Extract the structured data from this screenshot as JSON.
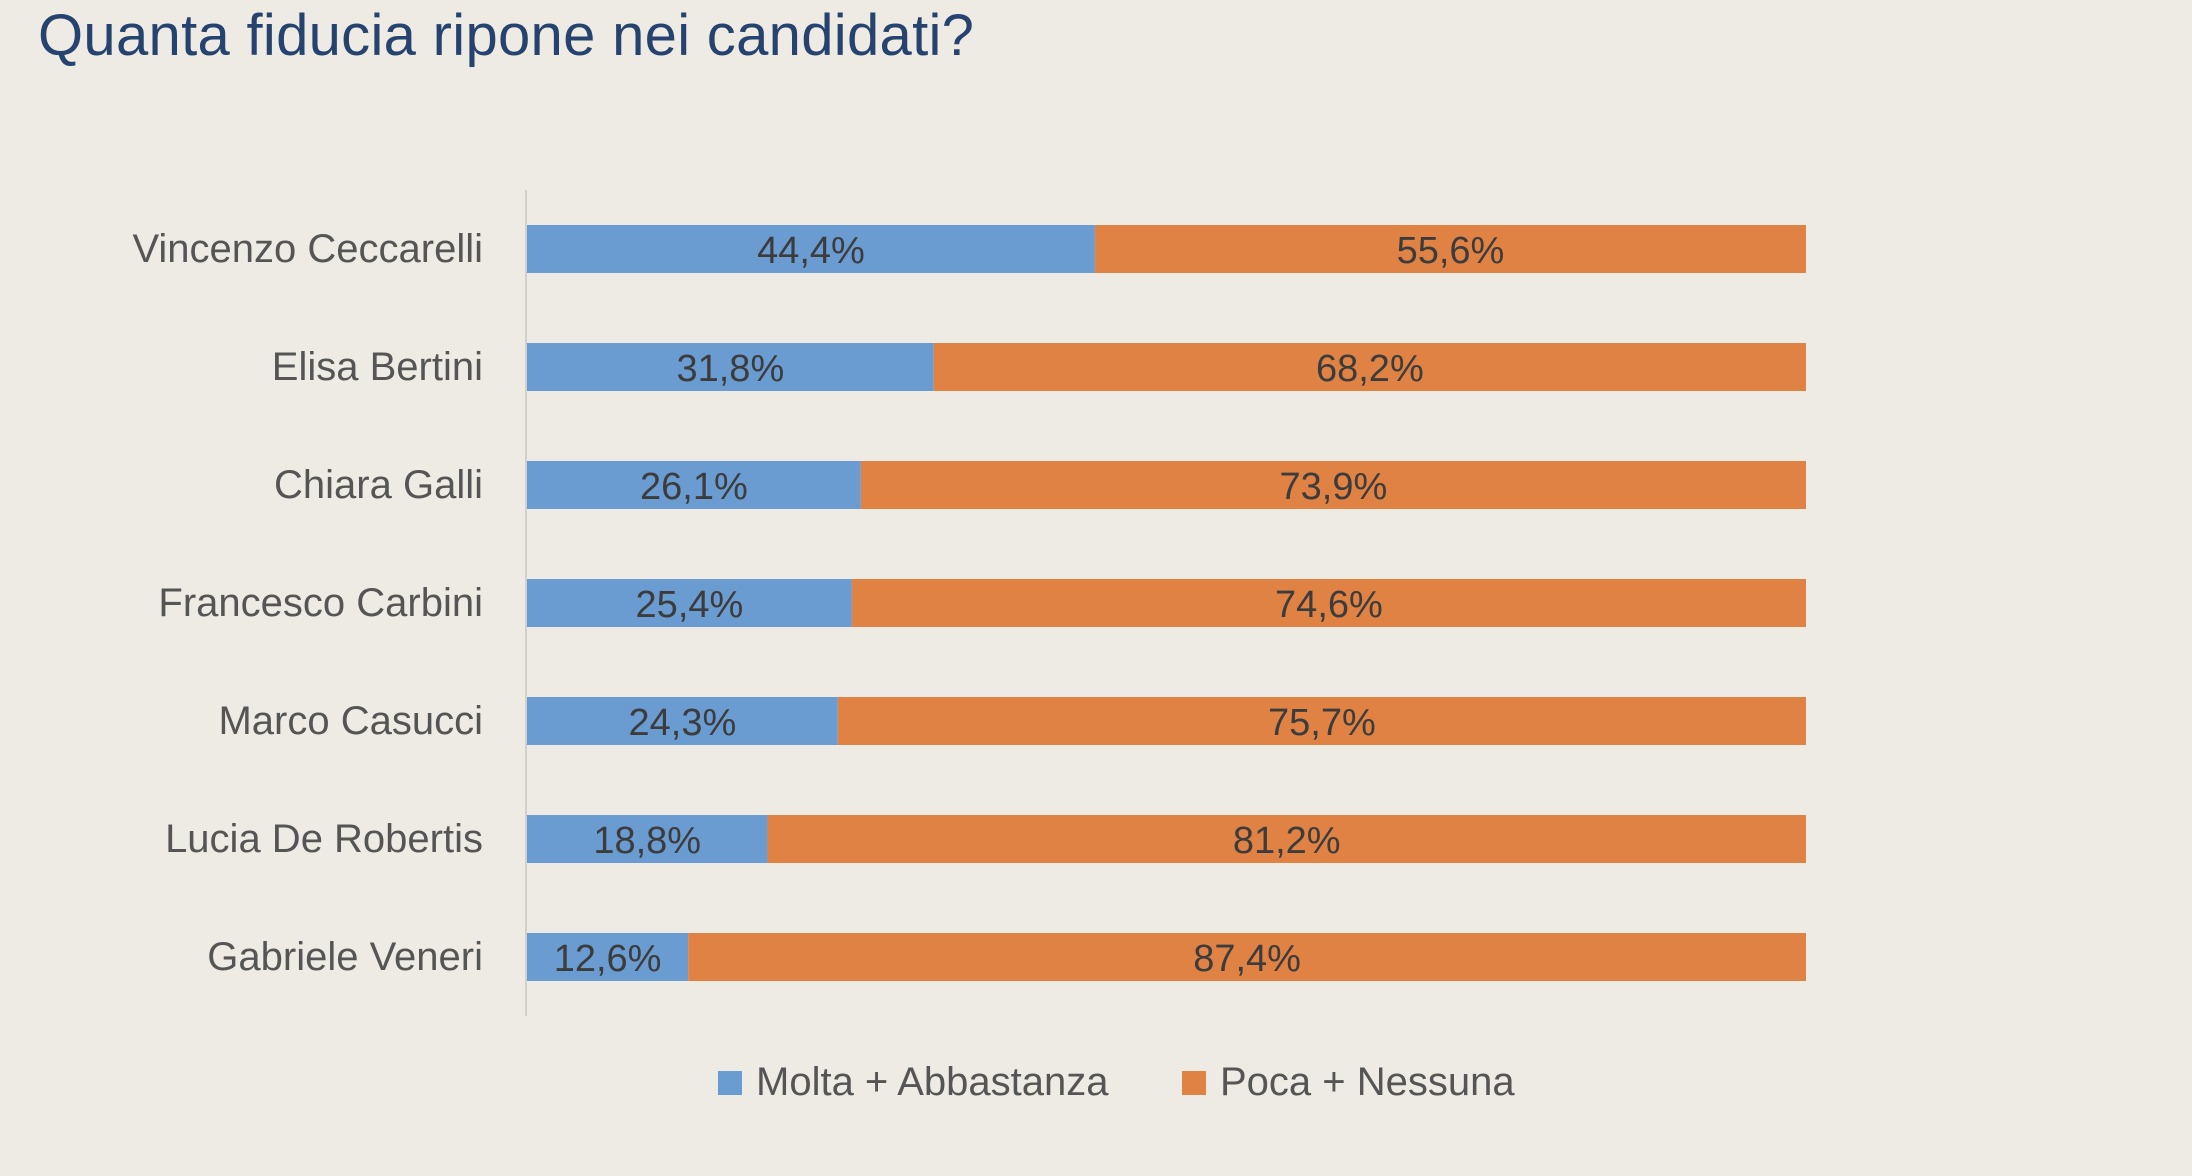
{
  "title": "Quanta fiducia ripone nei candidati?",
  "chart_data": {
    "type": "bar",
    "orientation": "horizontal",
    "stacked": true,
    "title": "Quanta fiducia ripone nei candidati?",
    "categories": [
      "Vincenzo Ceccarelli",
      "Elisa Bertini",
      "Chiara Galli",
      "Francesco Carbini",
      "Marco Casucci",
      "Lucia De Robertis",
      "Gabriele Veneri"
    ],
    "series": [
      {
        "name": "Molta + Abbastanza",
        "color": "#6a9bd1",
        "values": [
          44.4,
          31.8,
          26.1,
          25.4,
          24.3,
          18.8,
          12.6
        ],
        "labels": [
          "44,4%",
          "31,8%",
          "26,1%",
          "25,4%",
          "24,3%",
          "18,8%",
          "12,6%"
        ]
      },
      {
        "name": "Poca + Nessuna",
        "color": "#e08244",
        "values": [
          55.6,
          68.2,
          73.9,
          74.6,
          75.7,
          81.2,
          87.4
        ],
        "labels": [
          "55,6%",
          "68,2%",
          "73,9%",
          "74,6%",
          "75,7%",
          "81,2%",
          "87,4%"
        ]
      }
    ],
    "xlim": [
      0,
      100
    ],
    "grid": false,
    "legend_position": "bottom"
  }
}
